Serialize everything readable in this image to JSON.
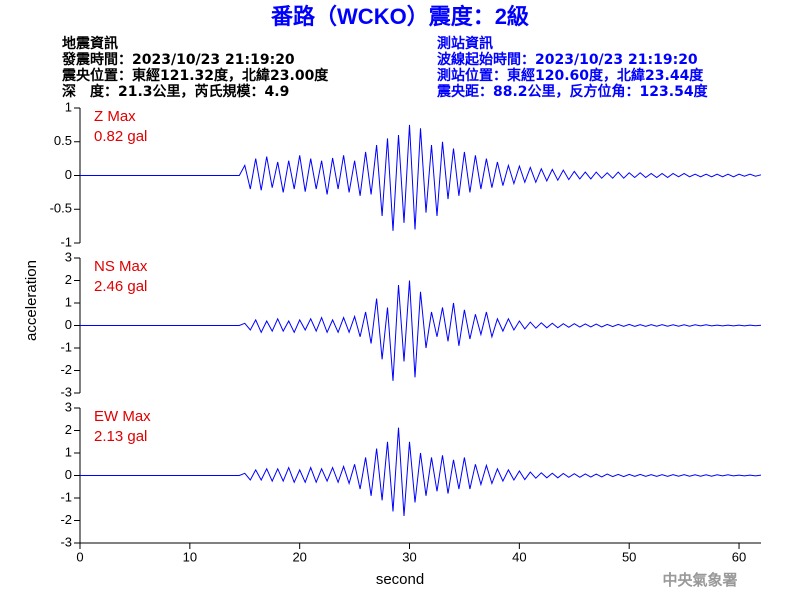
{
  "header": {
    "title": "番路（WCKO）震度：2級",
    "left": [
      "地震資訊",
      "發震時間：2023/10/23 21:19:20",
      "震央位置：東經121.32度，北緯23.00度",
      "深　度：21.3公里，芮氏規模：4.9"
    ],
    "right": [
      "測站資訊",
      "波線起始時間：2023/10/23 21:19:20",
      "測站位置：東經120.60度，北緯23.44度",
      "震央距：88.2公里，反方位角：123.54度"
    ]
  },
  "footer": "中央氣象署",
  "chart_data": [
    {
      "type": "line",
      "label": "Z Max",
      "annotation": "0.82 gal",
      "color": "#0000ff",
      "xlim": [
        0,
        62
      ],
      "ylim": [
        -1,
        1
      ],
      "yticks": [
        -1,
        -0.5,
        0,
        0.5,
        1
      ],
      "x": [
        0,
        14.5,
        15,
        15.5,
        16,
        16.5,
        17,
        17.5,
        18,
        18.5,
        19,
        19.5,
        20,
        20.5,
        21,
        21.5,
        22,
        22.5,
        23,
        23.5,
        24,
        24.5,
        25,
        25.5,
        26,
        26.5,
        27,
        27.5,
        28,
        28.5,
        29,
        29.5,
        30,
        30.5,
        31,
        31.5,
        32,
        32.5,
        33,
        33.5,
        34,
        34.5,
        35,
        35.5,
        36,
        36.5,
        37,
        37.5,
        38,
        38.5,
        39,
        39.5,
        40,
        40.5,
        41,
        41.5,
        42,
        42.5,
        43,
        43.5,
        44,
        44.5,
        45,
        45.5,
        46,
        46.5,
        47,
        47.5,
        48,
        48.5,
        49,
        49.5,
        50,
        50.5,
        51,
        51.5,
        52,
        52.5,
        53,
        53.5,
        54,
        54.5,
        55,
        55.5,
        56,
        56.5,
        57,
        57.5,
        58,
        58.5,
        59,
        59.5,
        60,
        60.5,
        61,
        61.5,
        62
      ],
      "values": [
        0,
        0,
        0.15,
        -0.2,
        0.25,
        -0.22,
        0.28,
        -0.18,
        0.2,
        -0.25,
        0.22,
        -0.2,
        0.3,
        -0.24,
        0.25,
        -0.2,
        0.22,
        -0.28,
        0.26,
        -0.2,
        0.3,
        -0.25,
        0.22,
        -0.3,
        0.35,
        -0.28,
        0.45,
        -0.6,
        0.55,
        -0.82,
        0.6,
        -0.7,
        0.75,
        -0.8,
        0.7,
        -0.55,
        0.45,
        -0.6,
        0.5,
        -0.35,
        0.4,
        -0.3,
        0.35,
        -0.25,
        0.3,
        -0.2,
        0.25,
        -0.18,
        0.2,
        -0.15,
        0.15,
        -0.12,
        0.14,
        -0.1,
        0.12,
        -0.1,
        0.1,
        -0.08,
        0.09,
        -0.07,
        0.08,
        -0.06,
        0.06,
        -0.05,
        0.05,
        -0.05,
        0.05,
        -0.04,
        0.04,
        -0.04,
        0.05,
        -0.04,
        0.04,
        -0.03,
        0.04,
        -0.03,
        0.03,
        -0.03,
        0.03,
        -0.03,
        0.03,
        -0.02,
        0.03,
        -0.02,
        0.02,
        -0.02,
        0.02,
        -0.02,
        0.02,
        -0.02,
        0.02,
        -0.02,
        0.02,
        -0.01,
        0.02,
        -0.01,
        0.01
      ]
    },
    {
      "type": "line",
      "label": "NS Max",
      "annotation": "2.46 gal",
      "color": "#0000ff",
      "ylabel": "acceleration",
      "xlim": [
        0,
        62
      ],
      "ylim": [
        -3,
        3
      ],
      "yticks": [
        -3,
        -2,
        -1,
        0,
        1,
        2,
        3
      ],
      "x": [
        0,
        14.5,
        15,
        15.5,
        16,
        16.5,
        17,
        17.5,
        18,
        18.5,
        19,
        19.5,
        20,
        20.5,
        21,
        21.5,
        22,
        22.5,
        23,
        23.5,
        24,
        24.5,
        25,
        25.5,
        26,
        26.5,
        27,
        27.5,
        28,
        28.5,
        29,
        29.5,
        30,
        30.5,
        31,
        31.5,
        32,
        32.5,
        33,
        33.5,
        34,
        34.5,
        35,
        35.5,
        36,
        36.5,
        37,
        37.5,
        38,
        38.5,
        39,
        39.5,
        40,
        40.5,
        41,
        41.5,
        42,
        42.5,
        43,
        43.5,
        44,
        44.5,
        45,
        45.5,
        46,
        46.5,
        47,
        47.5,
        48,
        48.5,
        49,
        49.5,
        50,
        50.5,
        51,
        51.5,
        52,
        52.5,
        53,
        53.5,
        54,
        54.5,
        55,
        55.5,
        56,
        56.5,
        57,
        57.5,
        58,
        58.5,
        59,
        59.5,
        60,
        60.5,
        61,
        61.5,
        62
      ],
      "values": [
        0,
        0,
        0.1,
        -0.2,
        0.25,
        -0.3,
        0.2,
        -0.25,
        0.3,
        -0.25,
        0.2,
        -0.3,
        0.25,
        -0.2,
        0.3,
        -0.25,
        0.35,
        -0.3,
        0.25,
        -0.3,
        0.35,
        -0.3,
        0.4,
        -0.5,
        0.6,
        -0.8,
        1.2,
        -1.5,
        0.8,
        -2.46,
        1.8,
        -1.6,
        2,
        -2.3,
        1.5,
        -1,
        0.6,
        -0.5,
        0.8,
        -0.7,
        1,
        -0.9,
        0.7,
        -0.6,
        0.5,
        -0.4,
        0.6,
        -0.5,
        0.3,
        -0.25,
        0.3,
        -0.2,
        0.2,
        -0.15,
        0.15,
        -0.12,
        0.12,
        -0.1,
        0.1,
        -0.1,
        0.08,
        -0.08,
        0.08,
        -0.07,
        0.07,
        -0.06,
        0.06,
        -0.06,
        0.05,
        -0.05,
        0.05,
        -0.04,
        0.05,
        -0.04,
        0.04,
        -0.04,
        0.04,
        -0.03,
        0.04,
        -0.03,
        0.03,
        -0.03,
        0.03,
        -0.03,
        0.03,
        -0.02,
        0.03,
        -0.02,
        0.02,
        -0.02,
        0.02,
        -0.02,
        0.02,
        -0.02,
        0.02,
        -0.01,
        0.01
      ]
    },
    {
      "type": "line",
      "label": "EW Max",
      "annotation": "2.13 gal",
      "color": "#0000ff",
      "xlabel": "second",
      "xlim": [
        0,
        62
      ],
      "xticks": [
        0,
        10,
        20,
        30,
        40,
        50,
        60
      ],
      "ylim": [
        -3,
        3
      ],
      "yticks": [
        -3,
        -2,
        -1,
        0,
        1,
        2,
        3
      ],
      "x": [
        0,
        14.5,
        15,
        15.5,
        16,
        16.5,
        17,
        17.5,
        18,
        18.5,
        19,
        19.5,
        20,
        20.5,
        21,
        21.5,
        22,
        22.5,
        23,
        23.5,
        24,
        24.5,
        25,
        25.5,
        26,
        26.5,
        27,
        27.5,
        28,
        28.5,
        29,
        29.5,
        30,
        30.5,
        31,
        31.5,
        32,
        32.5,
        33,
        33.5,
        34,
        34.5,
        35,
        35.5,
        36,
        36.5,
        37,
        37.5,
        38,
        38.5,
        39,
        39.5,
        40,
        40.5,
        41,
        41.5,
        42,
        42.5,
        43,
        43.5,
        44,
        44.5,
        45,
        45.5,
        46,
        46.5,
        47,
        47.5,
        48,
        48.5,
        49,
        49.5,
        50,
        50.5,
        51,
        51.5,
        52,
        52.5,
        53,
        53.5,
        54,
        54.5,
        55,
        55.5,
        56,
        56.5,
        57,
        57.5,
        58,
        58.5,
        59,
        59.5,
        60,
        60.5,
        61,
        61.5,
        62
      ],
      "values": [
        0,
        0,
        0.1,
        -0.2,
        0.25,
        -0.2,
        0.3,
        -0.25,
        0.3,
        -0.25,
        0.35,
        -0.3,
        0.25,
        -0.3,
        0.35,
        -0.3,
        0.3,
        -0.25,
        0.35,
        -0.3,
        0.4,
        -0.35,
        0.5,
        -0.6,
        0.8,
        -0.9,
        1.2,
        -1.1,
        1.5,
        -1.6,
        2.13,
        -1.8,
        1.5,
        -1.2,
        1,
        -0.9,
        0.8,
        -0.7,
        0.9,
        -0.8,
        0.7,
        -0.6,
        0.8,
        -0.6,
        0.5,
        -0.4,
        0.45,
        -0.35,
        0.3,
        -0.25,
        0.25,
        -0.2,
        0.2,
        -0.18,
        0.15,
        -0.12,
        0.12,
        -0.1,
        0.1,
        -0.1,
        0.09,
        -0.08,
        0.08,
        -0.08,
        0.07,
        -0.07,
        0.06,
        -0.06,
        0.06,
        -0.05,
        0.05,
        -0.05,
        0.05,
        -0.04,
        0.05,
        -0.04,
        0.04,
        -0.04,
        0.04,
        -0.04,
        0.04,
        -0.03,
        0.04,
        -0.03,
        0.03,
        -0.03,
        0.03,
        -0.03,
        0.03,
        -0.02,
        0.03,
        -0.02,
        0.02,
        -0.02,
        0.02,
        -0.02,
        0.02
      ]
    }
  ]
}
